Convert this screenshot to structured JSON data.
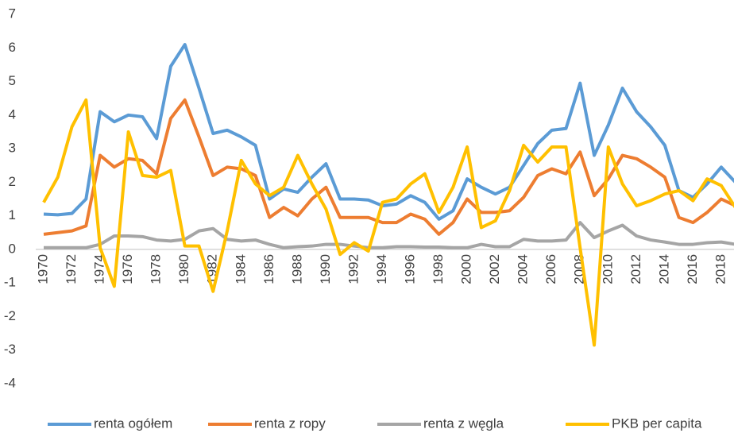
{
  "chart_data": {
    "type": "line",
    "categories": [
      "1970",
      null,
      "1972",
      null,
      "1974",
      null,
      "1976",
      null,
      "1978",
      null,
      "1980",
      null,
      "1982",
      null,
      "1984",
      null,
      "1986",
      null,
      "1988",
      null,
      "1990",
      null,
      "1992",
      null,
      "1994",
      null,
      "1996",
      null,
      "1998",
      null,
      "2000",
      null,
      "2002",
      null,
      "2004",
      null,
      "2006",
      null,
      "2008",
      null,
      "2010",
      null,
      "2012",
      null,
      "2014",
      null,
      "2016",
      null,
      "2018",
      null
    ],
    "series": [
      {
        "name": "renta ogółem",
        "color": "#5b9bd5",
        "values": [
          1.05,
          1.03,
          1.07,
          1.5,
          4.1,
          3.8,
          4.0,
          3.95,
          3.3,
          5.45,
          6.1,
          4.8,
          3.45,
          3.55,
          3.35,
          3.1,
          1.5,
          1.8,
          1.7,
          2.15,
          2.55,
          1.5,
          1.5,
          1.47,
          1.3,
          1.35,
          1.6,
          1.4,
          0.9,
          1.15,
          2.1,
          1.85,
          1.65,
          1.85,
          2.5,
          3.15,
          3.55,
          3.6,
          4.95,
          2.8,
          3.7,
          4.8,
          4.1,
          3.65,
          3.1,
          1.75,
          1.55,
          1.95,
          2.45,
          2.0
        ]
      },
      {
        "name": "renta z ropy",
        "color": "#ed7d31",
        "values": [
          0.45,
          0.5,
          0.55,
          0.7,
          2.8,
          2.45,
          2.7,
          2.65,
          2.25,
          3.9,
          4.45,
          3.35,
          2.2,
          2.45,
          2.4,
          2.2,
          0.95,
          1.25,
          1.0,
          1.5,
          1.85,
          0.95,
          0.95,
          0.95,
          0.8,
          0.8,
          1.05,
          0.9,
          0.45,
          0.8,
          1.5,
          1.1,
          1.1,
          1.15,
          1.55,
          2.2,
          2.4,
          2.25,
          2.9,
          1.6,
          2.1,
          2.8,
          2.7,
          2.45,
          2.15,
          0.95,
          0.8,
          1.1,
          1.5,
          1.3
        ]
      },
      {
        "name": "renta z węgla",
        "color": "#a5a5a5",
        "values": [
          0.05,
          0.05,
          0.05,
          0.05,
          0.15,
          0.4,
          0.4,
          0.38,
          0.28,
          0.25,
          0.3,
          0.55,
          0.62,
          0.3,
          0.25,
          0.28,
          0.15,
          0.05,
          0.08,
          0.1,
          0.15,
          0.15,
          0.1,
          0.05,
          0.05,
          0.08,
          0.08,
          0.07,
          0.07,
          0.05,
          0.05,
          0.15,
          0.08,
          0.08,
          0.3,
          0.25,
          0.25,
          0.28,
          0.8,
          0.35,
          0.55,
          0.72,
          0.4,
          0.28,
          0.22,
          0.15,
          0.15,
          0.2,
          0.22,
          0.15
        ]
      },
      {
        "name": "PKB per capita",
        "color": "#ffc000",
        "values": [
          1.4,
          2.15,
          3.65,
          4.45,
          0.05,
          -1.1,
          3.5,
          2.2,
          2.15,
          2.35,
          0.1,
          0.1,
          -1.25,
          0.55,
          2.65,
          1.95,
          1.6,
          1.85,
          2.8,
          1.95,
          1.2,
          -0.15,
          0.2,
          -0.05,
          1.4,
          1.5,
          1.95,
          2.25,
          1.1,
          1.85,
          3.05,
          0.65,
          0.85,
          1.75,
          3.1,
          2.6,
          3.05,
          3.05,
          0.05,
          -2.85,
          3.05,
          1.95,
          1.3,
          1.45,
          1.65,
          1.75,
          1.45,
          2.1,
          1.9,
          1.25
        ]
      }
    ],
    "ylim": [
      -4,
      7
    ],
    "yticks": [
      -4,
      -3,
      -2,
      -1,
      0,
      1,
      2,
      3,
      4,
      5,
      6,
      7
    ],
    "grid": false,
    "legend": "bottom"
  }
}
